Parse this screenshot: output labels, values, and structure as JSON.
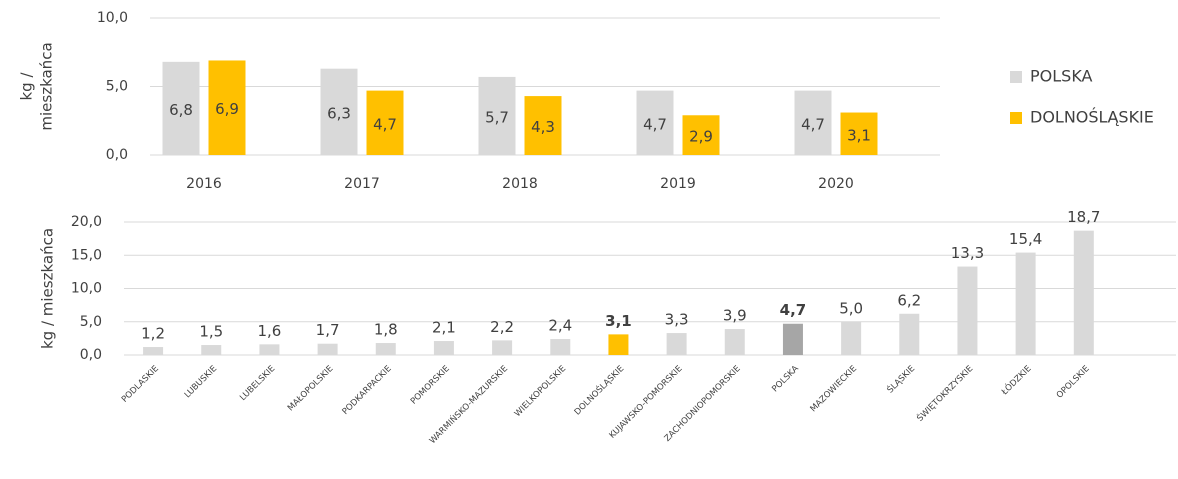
{
  "chart_data": [
    {
      "type": "grouped_bar",
      "y_label_lines": [
        "kg /",
        "mieszkańca"
      ],
      "categories": [
        "2016",
        "2017",
        "2018",
        "2019",
        "2020"
      ],
      "series": [
        {
          "name": "POLSKA",
          "color": "#d9d9d9",
          "values": [
            6.8,
            6.3,
            5.7,
            4.7,
            4.7
          ],
          "value_labels": [
            "6,8",
            "6,3",
            "5,7",
            "4,7",
            "4,7"
          ]
        },
        {
          "name": "DOLNOŚLĄSKIE",
          "color": "#ffc000",
          "values": [
            6.9,
            4.7,
            4.3,
            2.9,
            3.1
          ],
          "value_labels": [
            "6,9",
            "4,7",
            "4,3",
            "2,9",
            "3,1"
          ]
        }
      ],
      "ylim": [
        0,
        10
      ],
      "yticks": [
        {
          "value": 0,
          "label": "0,0"
        },
        {
          "value": 5,
          "label": "5,0"
        },
        {
          "value": 10,
          "label": "10,0"
        }
      ],
      "grid": true,
      "legend": "right"
    },
    {
      "type": "bar",
      "y_label": "kg / mieszkańca",
      "categories": [
        "PODLASKIE",
        "LUBUSKIE",
        "LUBELSKIE",
        "MAŁOPOLSKIE",
        "PODKARPACKIE",
        "POMORSKIE",
        "WARMIŃSKO-MAZURSKIE",
        "WIELKOPOLSKIE",
        "DOLNOŚLĄSKIE",
        "KUJAWSKO-POMORSKIE",
        "ZACHODNIOPOMORSKIE",
        "POLSKA",
        "MAZOWIECKIE",
        "ŚLĄSKIE",
        "ŚWIĘTOKRZYSKIE",
        "ŁÓDZKIE",
        "OPOLSKIE"
      ],
      "values": [
        1.2,
        1.5,
        1.6,
        1.7,
        1.8,
        2.1,
        2.2,
        2.4,
        3.1,
        3.3,
        3.9,
        4.7,
        5.0,
        6.2,
        13.3,
        15.4,
        18.7
      ],
      "value_labels": [
        "1,2",
        "1,5",
        "1,6",
        "1,7",
        "1,8",
        "2,1",
        "2,2",
        "2,4",
        "3,1",
        "3,3",
        "3,9",
        "4,7",
        "5,0",
        "6,2",
        "13,3",
        "15,4",
        "18,7"
      ],
      "colors": [
        "#d9d9d9",
        "#d9d9d9",
        "#d9d9d9",
        "#d9d9d9",
        "#d9d9d9",
        "#d9d9d9",
        "#d9d9d9",
        "#d9d9d9",
        "#ffc000",
        "#d9d9d9",
        "#d9d9d9",
        "#a6a6a6",
        "#d9d9d9",
        "#d9d9d9",
        "#d9d9d9",
        "#d9d9d9",
        "#d9d9d9"
      ],
      "ylim": [
        0,
        20
      ],
      "yticks": [
        {
          "value": 0,
          "label": "0,0"
        },
        {
          "value": 5,
          "label": "5,0"
        },
        {
          "value": 10,
          "label": "10,0"
        },
        {
          "value": 15,
          "label": "15,0"
        },
        {
          "value": 20,
          "label": "20,0"
        }
      ],
      "grid": true
    }
  ]
}
